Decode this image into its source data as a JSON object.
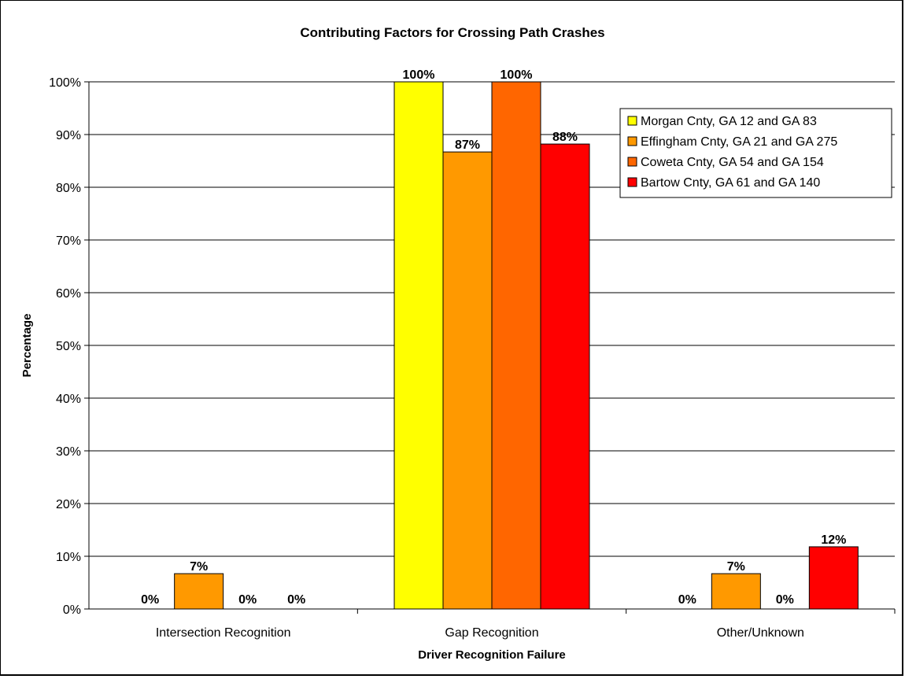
{
  "chart_data": {
    "type": "bar",
    "title": "Contributing Factors for Crossing Path Crashes",
    "xlabel": "Driver Recognition Failure",
    "ylabel": "Percentage",
    "ylim": [
      0,
      100
    ],
    "yticks": [
      "0%",
      "10%",
      "20%",
      "30%",
      "40%",
      "50%",
      "60%",
      "70%",
      "80%",
      "90%",
      "100%"
    ],
    "categories": [
      "Intersection Recognition",
      "Gap Recognition",
      "Other/Unknown"
    ],
    "series": [
      {
        "name": "Morgan Cnty, GA 12 and GA 83",
        "color": "#FFFF00",
        "values": [
          0,
          100,
          0
        ],
        "labels": [
          "0%",
          "100%",
          "0%"
        ]
      },
      {
        "name": "Effingham Cnty, GA 21 and GA 275",
        "color": "#FF9900",
        "values": [
          6.7,
          86.7,
          6.7
        ],
        "labels": [
          "7%",
          "87%",
          "7%"
        ]
      },
      {
        "name": "Coweta Cnty, GA 54 and GA 154",
        "color": "#FF6600",
        "values": [
          0,
          100,
          0
        ],
        "labels": [
          "0%",
          "100%",
          "0%"
        ]
      },
      {
        "name": "Bartow Cnty, GA 61 and GA 140",
        "color": "#FF0000",
        "values": [
          0,
          88.2,
          11.8
        ],
        "labels": [
          "0%",
          "88%",
          "12%"
        ]
      }
    ],
    "grid": true,
    "legend": "top-right"
  }
}
